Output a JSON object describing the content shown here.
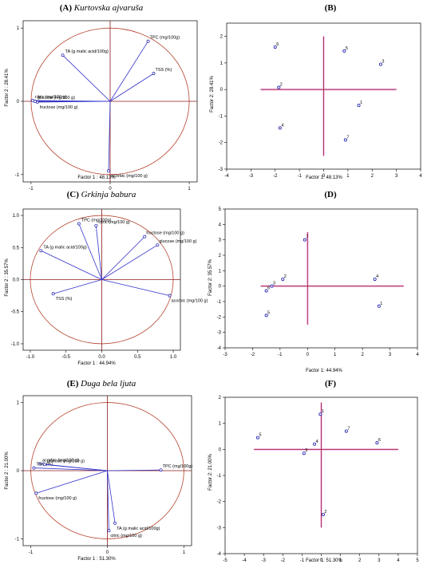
{
  "colors": {
    "vector": "#3333cc",
    "circle": "#b5452f",
    "axis": "#8b1a1a",
    "point": "#1a1aaa",
    "highlight": "#ffccff"
  },
  "chart_data": [
    {
      "type": "scatter",
      "subtype": "loadings",
      "title_letter": "(A)",
      "title_name": "Kurtovska ajvaruša",
      "xlabel": "Factor 1 : 48.13%",
      "ylabel": "Factor 2 : 28.41%",
      "xlim": [
        -1.1,
        1.1
      ],
      "ylim": [
        -1.1,
        1.1
      ],
      "xticks": [
        -1,
        0,
        1
      ],
      "yticks": [
        -1,
        0,
        1
      ],
      "tick_labels_x": [
        "-1",
        "0",
        "1"
      ],
      "tick_labels_y": [
        "-1",
        "0",
        "1"
      ],
      "unit_circle": true,
      "points": [
        {
          "label": "TPC (mg/100g)",
          "x": 0.48,
          "y": 0.82
        },
        {
          "label": "TA (g malic acid/100g)",
          "x": -0.6,
          "y": 0.63
        },
        {
          "label": "TSS (%)",
          "x": 0.55,
          "y": 0.38
        },
        {
          "label": "citric (mg/100 g)",
          "x": -0.98,
          "y": 0.01
        },
        {
          "label": "fructose (mg/100 g)",
          "x": -0.92,
          "y": -0.01
        },
        {
          "label": "glucose (mg/100 g)",
          "x": -0.95,
          "y": 0.0
        },
        {
          "label": "acorbic (mg/100 g)",
          "x": -0.02,
          "y": -0.95
        }
      ]
    },
    {
      "type": "scatter",
      "subtype": "scores",
      "title_letter": "(B)",
      "xlabel": "Factor 1: 48.13%",
      "ylabel": "Factor 2: 28.41%",
      "xlim": [
        -4,
        4
      ],
      "ylim": [
        -3,
        2.5
      ],
      "xticks": [
        -4,
        -3,
        -2,
        -1,
        0,
        1,
        2,
        3,
        4
      ],
      "yticks": [
        -3,
        -2,
        -1,
        0,
        1,
        2
      ],
      "tick_labels_x": [
        "-4",
        "-3",
        "-2",
        "-1",
        "0",
        "1",
        "2",
        "3",
        "4"
      ],
      "tick_labels_y": [
        "-3",
        "-2",
        "-1",
        "0",
        "1",
        "2"
      ],
      "cross": {
        "x_range": [
          -2.6,
          3.0
        ],
        "y_range": [
          -2.5,
          2.0
        ]
      },
      "points": [
        {
          "label": "6",
          "x": -2.0,
          "y": 1.6
        },
        {
          "label": "2",
          "x": -1.85,
          "y": 0.08
        },
        {
          "label": "4",
          "x": -1.8,
          "y": -1.45
        },
        {
          "label": "5",
          "x": 0.85,
          "y": 1.45
        },
        {
          "label": "3",
          "x": 2.35,
          "y": 0.95
        },
        {
          "label": "1",
          "x": 1.45,
          "y": -0.6
        },
        {
          "label": "7",
          "x": 0.9,
          "y": -1.9
        }
      ]
    },
    {
      "type": "scatter",
      "subtype": "loadings",
      "title_letter": "(C)",
      "title_name": "Grkinja babura",
      "xlabel": "Factor 1 : 44.94%",
      "ylabel": "Factor 2 : 35.57%",
      "xlim": [
        -1.1,
        1.1
      ],
      "ylim": [
        -1.1,
        1.1
      ],
      "xticks": [
        -1.0,
        -0.5,
        0.0,
        0.5,
        1.0
      ],
      "yticks": [
        -1.0,
        -0.5,
        0.0,
        0.5,
        1.0
      ],
      "tick_labels_x": [
        "-1.0",
        "-0.5",
        "0.0",
        "0.5",
        "1.0"
      ],
      "tick_labels_y": [
        "-1.0",
        "-0.5",
        "0.0",
        "0.5",
        "1.0"
      ],
      "unit_circle": true,
      "points": [
        {
          "label": "TPC (mg/100g)",
          "x": -0.32,
          "y": 0.87
        },
        {
          "label": "citric (mg/100 g)",
          "x": -0.08,
          "y": 0.84
        },
        {
          "label": "fructose (mg/100 g)",
          "x": 0.6,
          "y": 0.67
        },
        {
          "label": "glucose (mg/100 g)",
          "x": 0.78,
          "y": 0.54
        },
        {
          "label": "TA (g malic acid/100g)",
          "x": -0.85,
          "y": 0.45
        },
        {
          "label": "TSS (%)",
          "x": -0.68,
          "y": -0.22
        },
        {
          "label": "acorbic (mg/100 g)",
          "x": 0.95,
          "y": -0.25
        }
      ]
    },
    {
      "type": "scatter",
      "subtype": "scores",
      "title_letter": "(D)",
      "xlabel": "Factor 1: 44.94%",
      "ylabel": "Factor 2: 35.57%",
      "xlim": [
        -3,
        4
      ],
      "ylim": [
        -4,
        5
      ],
      "xticks": [
        -3,
        -2,
        -1,
        0,
        1,
        2,
        3,
        4
      ],
      "yticks": [
        -4,
        -3,
        -2,
        -1,
        0,
        1,
        2,
        3,
        4,
        5
      ],
      "tick_labels_x": [
        "-3",
        "-2",
        "-1",
        "0",
        "1",
        "2",
        "3",
        "4"
      ],
      "tick_labels_y": [
        "-4",
        "-3",
        "-2",
        "-1",
        "0",
        "1",
        "2",
        "3",
        "4",
        "5"
      ],
      "cross": {
        "x_range": [
          -1.7,
          3.5
        ],
        "y_range": [
          -2.5,
          3.5
        ]
      },
      "points": [
        {
          "label": "7",
          "x": -0.1,
          "y": 3.0
        },
        {
          "label": "2",
          "x": -0.9,
          "y": 0.45
        },
        {
          "label": "3",
          "x": -1.3,
          "y": 0.0
        },
        {
          "label": "6",
          "x": -1.5,
          "y": -0.3
        },
        {
          "label": "5",
          "x": -1.5,
          "y": -1.9
        },
        {
          "label": "4",
          "x": 2.45,
          "y": 0.45
        },
        {
          "label": "1",
          "x": 2.6,
          "y": -1.3
        }
      ]
    },
    {
      "type": "scatter",
      "subtype": "loadings",
      "title_letter": "(E)",
      "title_name": "Duga bela ljuta",
      "xlabel": "Factor 1 : 51.30%",
      "ylabel": "Factor 2 : 21.00%",
      "xlim": [
        -1.1,
        1.1
      ],
      "ylim": [
        -1.1,
        1.1
      ],
      "xticks": [
        -1,
        0,
        1
      ],
      "yticks": [
        -1,
        0,
        1
      ],
      "tick_labels_x": [
        "-1",
        "0",
        "1"
      ],
      "tick_labels_y": [
        "-1",
        "0",
        "1"
      ],
      "unit_circle": true,
      "points": [
        {
          "label": "acorbic (mg/100 g)",
          "x": -0.88,
          "y": 0.1
        },
        {
          "label": "TSS (%)",
          "x": -0.96,
          "y": 0.04
        },
        {
          "label": "glucose (mg/100 g)",
          "x": -0.82,
          "y": 0.09
        },
        {
          "label": "TPC (mg/100g)",
          "x": 0.7,
          "y": 0.01
        },
        {
          "label": "fructose (mg/100 g)",
          "x": -0.93,
          "y": -0.33
        },
        {
          "label": "TA (g malic acid/100g)",
          "x": 0.1,
          "y": -0.77
        },
        {
          "label": "citric (mg/100 g)",
          "x": 0.02,
          "y": -0.88
        }
      ]
    },
    {
      "type": "scatter",
      "subtype": "scores",
      "title_letter": "(F)",
      "xlabel": "Factor 1: 51.30%",
      "ylabel": "Factor 2: 21.00%",
      "xlim": [
        -5,
        5
      ],
      "ylim": [
        -4,
        2
      ],
      "xticks": [
        -5,
        -4,
        -3,
        -2,
        -1,
        0,
        1,
        2,
        3,
        4,
        5
      ],
      "yticks": [
        -4,
        -3,
        -2,
        -1,
        0,
        1,
        2
      ],
      "tick_labels_x": [
        "-5",
        "-4",
        "-3",
        "-2",
        "-1",
        "0",
        "1",
        "2",
        "3",
        "4",
        "5"
      ],
      "tick_labels_y": [
        "-4",
        "-3",
        "-2",
        "-1",
        "0",
        "1",
        "2"
      ],
      "cross": {
        "x_range": [
          -3.5,
          4.0
        ],
        "y_range": [
          -3.0,
          1.8
        ]
      },
      "points": [
        {
          "label": "5",
          "x": -3.3,
          "y": 0.45
        },
        {
          "label": "1",
          "x": -0.05,
          "y": 1.35
        },
        {
          "label": "7",
          "x": 1.3,
          "y": 0.7
        },
        {
          "label": "6",
          "x": 2.9,
          "y": 0.25
        },
        {
          "label": "4",
          "x": -0.35,
          "y": 0.2
        },
        {
          "label": "3",
          "x": -0.9,
          "y": -0.15
        },
        {
          "label": "2",
          "x": 0.1,
          "y": -2.5
        }
      ]
    }
  ]
}
